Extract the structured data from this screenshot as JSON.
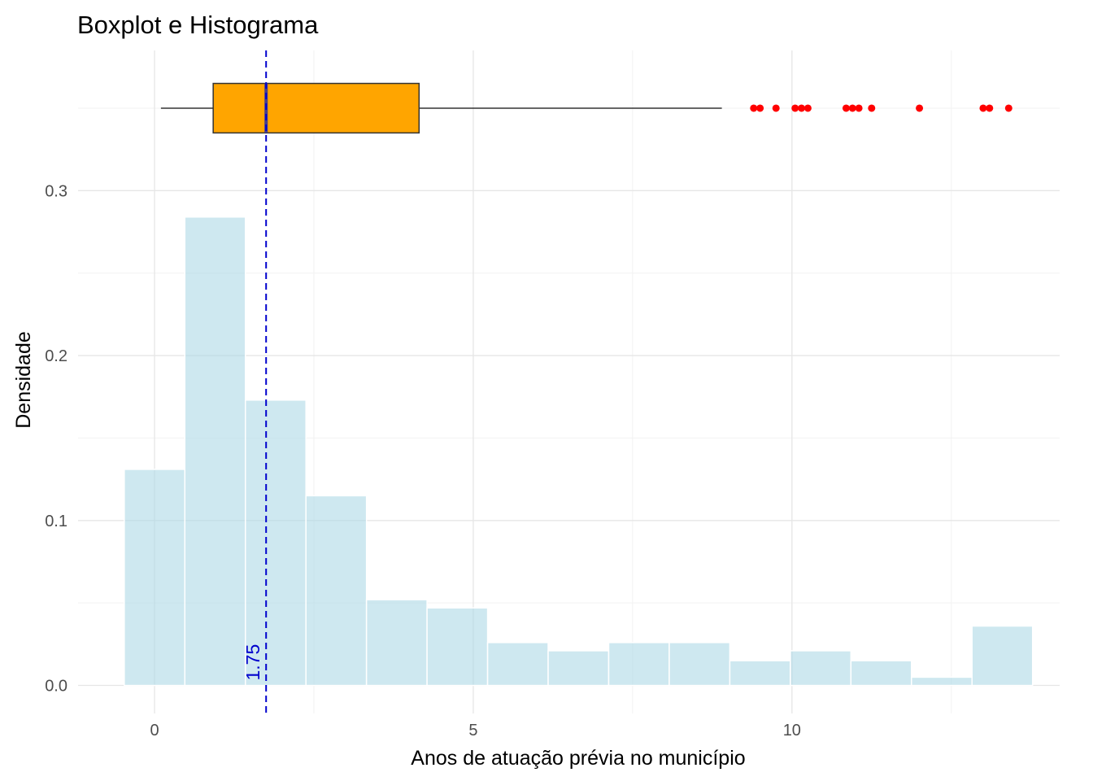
{
  "chart_data": {
    "type": "bar",
    "subtype": "histogram-with-boxplot",
    "title": "Boxplot e Histograma",
    "xlabel": "Anos de atuação prévia no município",
    "ylabel": "Densidade",
    "xlim": [
      -1.2,
      14.2
    ],
    "ylim": [
      -0.017,
      0.385
    ],
    "x_ticks": [
      0,
      5,
      10
    ],
    "x_tick_labels": [
      "0",
      "5",
      "10"
    ],
    "y_ticks": [
      0.0,
      0.1,
      0.2,
      0.3
    ],
    "y_tick_labels": [
      "0.0",
      "0.1",
      "0.2",
      "0.3"
    ],
    "grid": true,
    "histogram": {
      "bin_width": 0.95,
      "bin_start": -0.475,
      "fill_color": "#add8e6",
      "fill_opacity": 0.6,
      "border_color": "#ffffff",
      "density": [
        0.131,
        0.284,
        0.173,
        0.115,
        0.052,
        0.047,
        0.026,
        0.021,
        0.026,
        0.026,
        0.015,
        0.021,
        0.015,
        0.005,
        0.036
      ]
    },
    "boxplot": {
      "y_position": 0.35,
      "box_half_height": 0.015,
      "whisker_low": 0.1,
      "q1": 0.92,
      "median": 1.75,
      "q3": 4.15,
      "whisker_high": 8.9,
      "outliers": [
        9.4,
        9.5,
        9.75,
        10.05,
        10.15,
        10.25,
        10.85,
        10.95,
        11.05,
        11.25,
        12.0,
        13.0,
        13.1,
        13.4
      ],
      "box_color": "#ffa500",
      "median_color": "#483d8b",
      "outlier_color": "#ff0000"
    },
    "reference_line": {
      "x": 1.75,
      "label": "1.75",
      "color": "#0000cd",
      "style": "dashed"
    }
  }
}
